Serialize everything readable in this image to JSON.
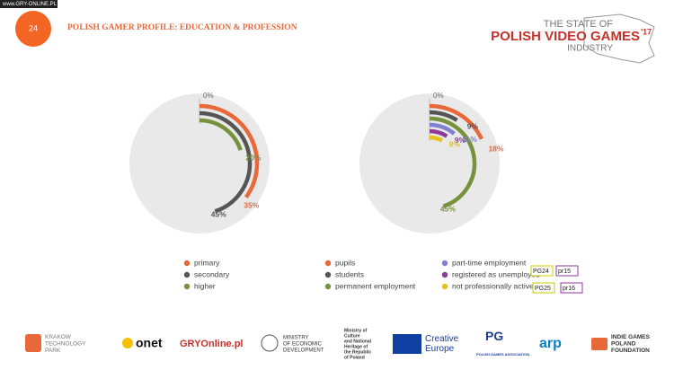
{
  "header": {
    "page_number": "24",
    "title": "POLISH GAMER PROFILE: EDUCATION & PROFESSION",
    "logo": [
      "THE STATE OF",
      "POLISH VIDEO GAMES",
      "'17",
      "INDUSTRY"
    ],
    "watermark": "www.GRY-ONLINE.PL"
  },
  "chart_data": [
    {
      "type": "radial_bar",
      "rlim": [
        0,
        100
      ],
      "ticks": [
        {
          "value": 0,
          "label": "0%"
        }
      ],
      "series": [
        {
          "name": "primary",
          "color": "#e8683a",
          "values": [
            35
          ],
          "value_labels": [
            "35%"
          ]
        },
        {
          "name": "secondary",
          "color": "#555555",
          "values": [
            45
          ],
          "value_labels": [
            "45%"
          ]
        },
        {
          "name": "higher",
          "color": "#76923c",
          "values": [
            20
          ],
          "value_labels": [
            "20%"
          ]
        }
      ]
    },
    {
      "type": "radial_bar",
      "rlim": [
        0,
        100
      ],
      "ticks": [
        {
          "value": 0,
          "label": "0%"
        }
      ],
      "series": [
        {
          "name": "pupils",
          "color": "#e8683a",
          "values": [
            18
          ],
          "value_labels": [
            "18%"
          ]
        },
        {
          "name": "students",
          "color": "#555555",
          "values": [
            9
          ],
          "value_labels": [
            "9%"
          ]
        },
        {
          "name": "permanent employment",
          "color": "#76923c",
          "values": [
            45
          ],
          "value_labels": [
            "45%"
          ]
        },
        {
          "name": "part-time employment",
          "color": "#8080d0",
          "values": [
            11
          ],
          "value_labels": [
            "11%"
          ]
        },
        {
          "name": "registered as unemployed",
          "color": "#8e3a9a",
          "values": [
            9
          ],
          "value_labels": [
            "9%"
          ]
        },
        {
          "name": "not professionally active",
          "color": "#e6c21c",
          "values": [
            8
          ],
          "value_labels": [
            "8%"
          ]
        }
      ]
    }
  ],
  "tags": [
    "PG24",
    "pr15",
    "PG25",
    "pr16"
  ],
  "footer": {
    "logos": [
      [
        "KRAKOW",
        "TECHNOLOGY",
        "PARK"
      ],
      [
        "onet"
      ],
      [
        "GRYOnline.pl"
      ],
      [
        "MINISTRY",
        "OF ECONOMIC",
        "DEVELOPMENT"
      ],
      [
        "Ministry of",
        "Culture",
        "and National",
        "Heritage of",
        "the Republic",
        "of Poland"
      ],
      [
        "Creative",
        "Europe"
      ],
      [
        "PG",
        "POLISH GAMES ASSOCIATION"
      ],
      [
        "arp"
      ],
      [
        "INDIE GAMES",
        "POLAND",
        "FOUNDATION"
      ]
    ]
  }
}
